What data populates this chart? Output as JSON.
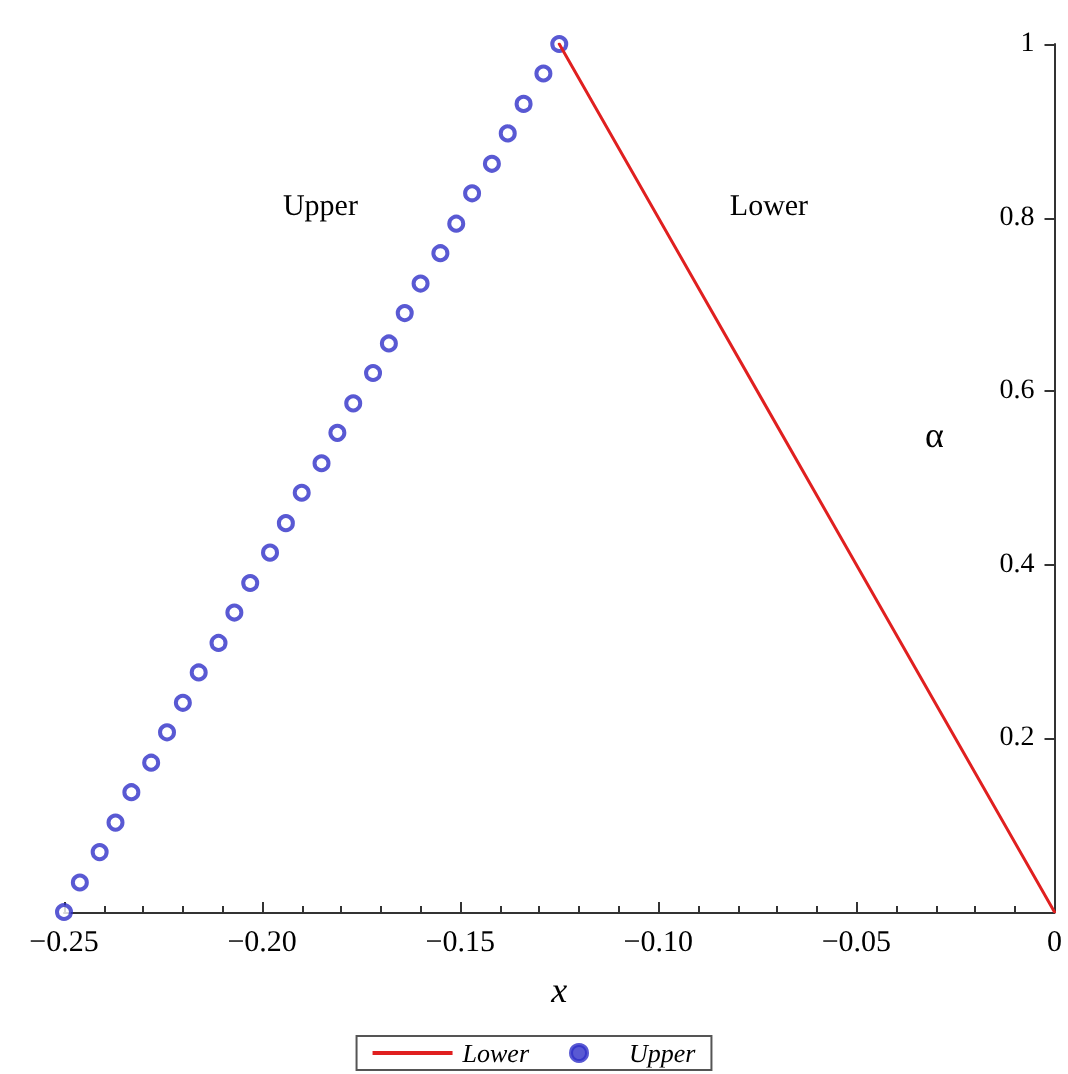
{
  "chart_data": {
    "type": "line",
    "xlabel": "x",
    "ylabel": "α",
    "xlim": [
      -0.25,
      0
    ],
    "xticks": [
      {
        "value": -0.25,
        "label": "−0.25"
      },
      {
        "value": -0.2,
        "label": "−0.20"
      },
      {
        "value": -0.15,
        "label": "−0.15"
      },
      {
        "value": -0.1,
        "label": "−0.10"
      },
      {
        "value": -0.05,
        "label": "−0.05"
      },
      0
    ],
    "ylim": [
      0,
      1
    ],
    "yticks": [
      {
        "value": 0,
        "label": null
      },
      0.2,
      0.4,
      0.6,
      0.8,
      1
    ],
    "grid": false,
    "legend": "bottom",
    "annotations": [
      "Upper",
      "Lower"
    ],
    "series": [
      {
        "name": "Lower",
        "color": "#e02020",
        "marker": "none",
        "line_style": "solid",
        "x": [
          -0.125,
          0
        ],
        "values": [
          1,
          0
        ]
      },
      {
        "name": "Upper",
        "type": "scatter",
        "color": "#3030c8",
        "marker": "circle",
        "x": [
          -0.25,
          -0.246,
          -0.241,
          -0.237,
          -0.233,
          -0.228,
          -0.224,
          -0.22,
          -0.216,
          -0.211,
          -0.207,
          -0.203,
          -0.198,
          -0.194,
          -0.19,
          -0.185,
          -0.181,
          -0.177,
          -0.172,
          -0.168,
          -0.164,
          -0.16,
          -0.155,
          -0.151,
          -0.147,
          -0.142,
          -0.138,
          -0.134,
          -0.129,
          -0.125
        ],
        "values": [
          0,
          0.034,
          0.069,
          0.103,
          0.138,
          0.172,
          0.207,
          0.241,
          0.276,
          0.31,
          0.345,
          0.379,
          0.414,
          0.448,
          0.483,
          0.517,
          0.552,
          0.586,
          0.621,
          0.655,
          0.69,
          0.724,
          0.759,
          0.793,
          0.828,
          0.862,
          0.897,
          0.931,
          0.966,
          1
        ]
      }
    ]
  }
}
